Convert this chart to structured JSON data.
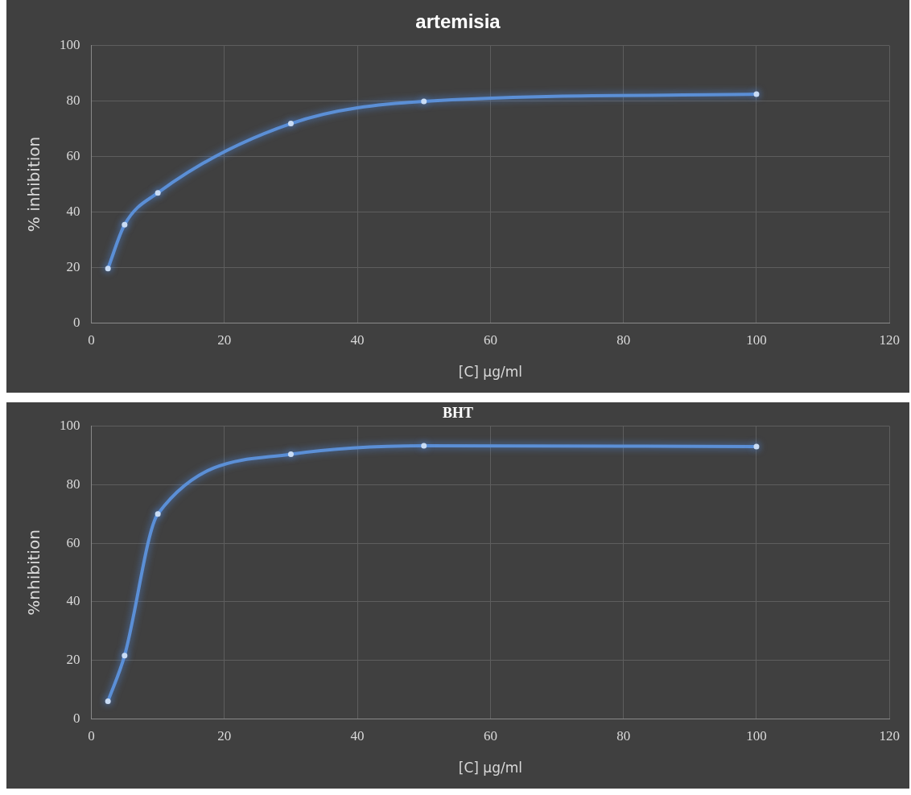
{
  "chart_data": [
    {
      "type": "line",
      "title": "artemisia",
      "xlabel": "[C] µg/ml",
      "ylabel": "% inhibition",
      "x": [
        2.5,
        5,
        10,
        30,
        50,
        100
      ],
      "series": [
        {
          "color": "#5b8fd6",
          "values": [
            19.6,
            35.4,
            46.9,
            71.9,
            79.9,
            82.5
          ]
        }
      ],
      "xlim": [
        0,
        120
      ],
      "xticks": [
        0,
        20,
        40,
        60,
        80,
        100,
        120
      ],
      "ylim": [
        0,
        100
      ],
      "yticks": [
        0,
        20,
        40,
        60,
        80,
        100
      ],
      "grid": true,
      "marker": "circle",
      "line_style": "solid"
    },
    {
      "type": "line",
      "title": "BHT",
      "xlabel": "[C] µg/ml",
      "ylabel": "%nhibition",
      "x": [
        2.5,
        5,
        10,
        30,
        50,
        100
      ],
      "series": [
        {
          "color": "#5b8fd6",
          "values": [
            6,
            21.6,
            70,
            90.4,
            93.3,
            93
          ]
        }
      ],
      "xlim": [
        0,
        120
      ],
      "xticks": [
        0,
        20,
        40,
        60,
        80,
        100,
        120
      ],
      "ylim": [
        0,
        100
      ],
      "yticks": [
        0,
        20,
        40,
        60,
        80,
        100
      ],
      "grid": true,
      "marker": "circle",
      "line_style": "solid"
    }
  ]
}
